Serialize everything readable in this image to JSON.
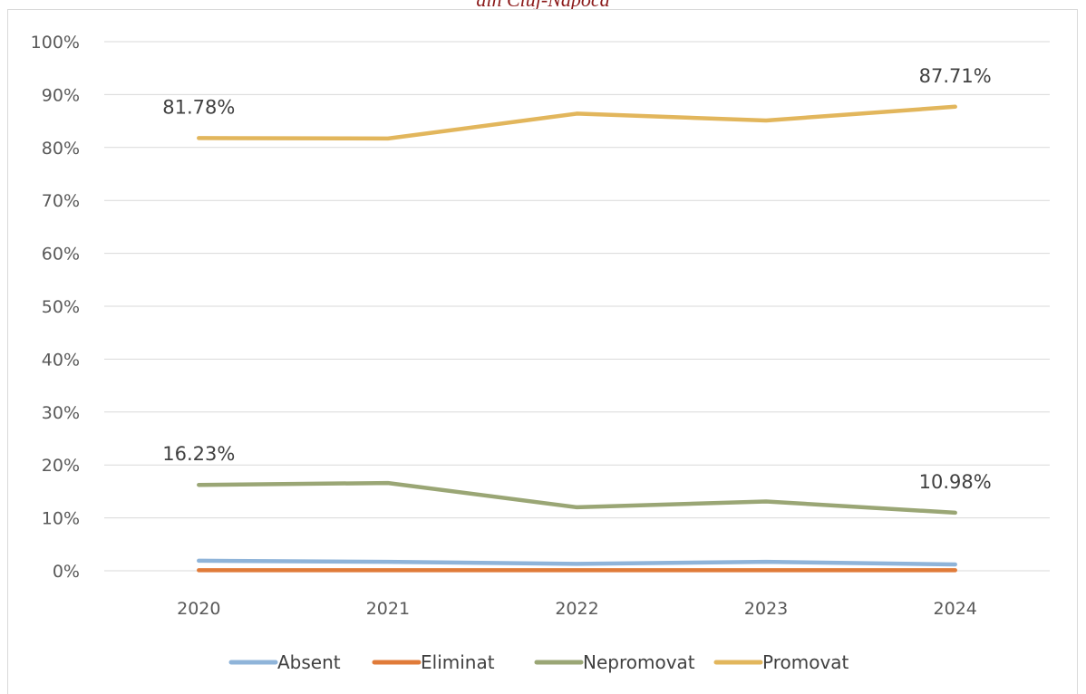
{
  "header_text": "din Cluj-Napoca",
  "chart_data": {
    "type": "line",
    "categories": [
      "2020",
      "2021",
      "2022",
      "2023",
      "2024"
    ],
    "yticks": [
      "0%",
      "10%",
      "20%",
      "30%",
      "40%",
      "50%",
      "60%",
      "70%",
      "80%",
      "90%",
      "100%"
    ],
    "ylim": [
      0,
      100
    ],
    "grid": true,
    "legend_position": "bottom",
    "series": [
      {
        "name": "Absent",
        "color": "#8fb4d9",
        "values": [
          1.9,
          1.7,
          1.3,
          1.7,
          1.2
        ]
      },
      {
        "name": "Eliminat",
        "color": "#e07b39",
        "values": [
          0.1,
          0.1,
          0.1,
          0.1,
          0.1
        ]
      },
      {
        "name": "Nepromovat",
        "color": "#9aa675",
        "values": [
          16.23,
          16.6,
          12.0,
          13.1,
          10.98
        ]
      },
      {
        "name": "Promovat",
        "color": "#e2b65c",
        "values": [
          81.78,
          81.7,
          86.4,
          85.1,
          87.71
        ]
      }
    ],
    "data_labels": [
      {
        "series": "Promovat",
        "index": 0,
        "text": "81.78%"
      },
      {
        "series": "Promovat",
        "index": 4,
        "text": "87.71%"
      },
      {
        "series": "Nepromovat",
        "index": 0,
        "text": "16.23%"
      },
      {
        "series": "Nepromovat",
        "index": 4,
        "text": "10.98%"
      }
    ]
  }
}
